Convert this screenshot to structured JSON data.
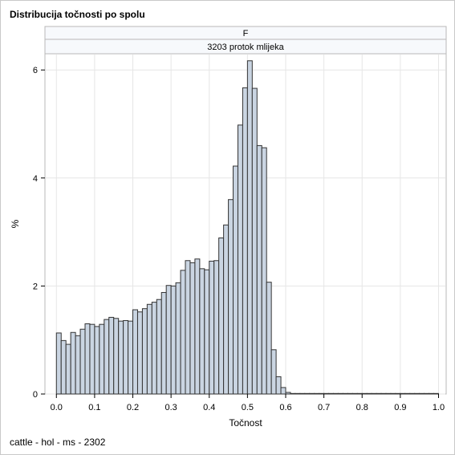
{
  "chart_data": {
    "type": "bar",
    "title": "Distribucija točnosti po spolu",
    "panel_headers": [
      "F",
      "3203 protok mlijeka"
    ],
    "xlabel": "Točnost",
    "ylabel": "%",
    "footnote": "cattle - hol - ms - 2302",
    "xlim": [
      -0.03,
      1.02
    ],
    "ylim": [
      0,
      6.3
    ],
    "xticks": [
      "0.0",
      "0.1",
      "0.2",
      "0.3",
      "0.4",
      "0.5",
      "0.6",
      "0.7",
      "0.8",
      "0.9",
      "1.0"
    ],
    "yticks": [
      "0",
      "2",
      "4",
      "6"
    ],
    "bin_width": 0.0125,
    "bin_starts": [
      0.0,
      0.0125,
      0.025,
      0.0375,
      0.05,
      0.0625,
      0.075,
      0.0875,
      0.1,
      0.1125,
      0.125,
      0.1375,
      0.15,
      0.1625,
      0.175,
      0.1875,
      0.2,
      0.2125,
      0.225,
      0.2375,
      0.25,
      0.2625,
      0.275,
      0.2875,
      0.3,
      0.3125,
      0.325,
      0.3375,
      0.35,
      0.3625,
      0.375,
      0.3875,
      0.4,
      0.4125,
      0.425,
      0.4375,
      0.45,
      0.4625,
      0.475,
      0.4875,
      0.5,
      0.5125,
      0.525,
      0.5375,
      0.55,
      0.5625,
      0.575,
      0.5875,
      0.6,
      0.6125,
      0.625,
      0.6375,
      0.65,
      0.6625,
      0.675,
      0.6875,
      0.7,
      0.7125,
      0.725,
      0.7375,
      0.75,
      0.7625,
      0.775,
      0.7875,
      0.8,
      0.8125,
      0.825,
      0.8375,
      0.85,
      0.8625,
      0.875,
      0.8875,
      0.9,
      0.9125,
      0.925,
      0.9375,
      0.95,
      0.9625,
      0.975,
      0.9875
    ],
    "values": [
      1.13,
      0.99,
      0.92,
      1.14,
      1.08,
      1.2,
      1.3,
      1.29,
      1.25,
      1.29,
      1.38,
      1.42,
      1.4,
      1.35,
      1.36,
      1.35,
      1.56,
      1.52,
      1.58,
      1.66,
      1.7,
      1.75,
      1.88,
      2.01,
      2.0,
      2.06,
      2.29,
      2.47,
      2.43,
      2.5,
      2.32,
      2.3,
      2.46,
      2.47,
      2.89,
      3.13,
      3.6,
      4.22,
      4.98,
      5.67,
      6.17,
      5.66,
      4.6,
      4.56,
      2.07,
      0.82,
      0.32,
      0.12,
      0.03,
      0.01,
      0.01,
      0.01,
      0.01,
      0.01,
      0.01,
      0.01,
      0.01,
      0.01,
      0.01,
      0.01,
      0.01,
      0.01,
      0.01,
      0.01,
      0.01,
      0.01,
      0.01,
      0.01,
      0.01,
      0.01,
      0.01,
      0.01,
      0.01,
      0.01,
      0.01,
      0.01,
      0.01,
      0.01,
      0.01,
      0.01
    ],
    "grid": true,
    "bar_color": "#cad5e2",
    "bar_edge_color": "#333333"
  }
}
